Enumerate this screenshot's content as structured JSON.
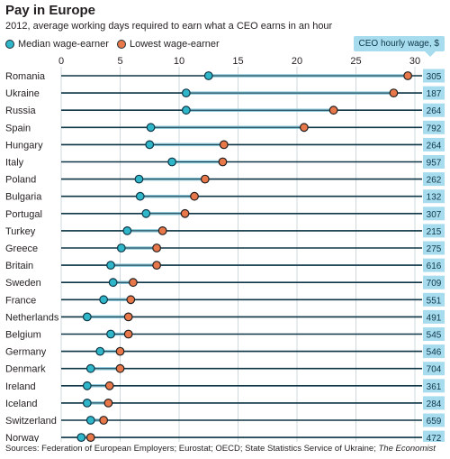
{
  "title": "Pay in Europe",
  "subtitle": "2012, average working days required to earn what a CEO earns in an hour",
  "legend": {
    "median": "Median wage-earner",
    "lowest": "Lowest wage-earner"
  },
  "ceo_header": "CEO hourly wage, $",
  "source": "Sources: Federation of European Employers; Eurostat; OECD; State Statistics Service of Ukraine; ",
  "source_italic": "The Economist",
  "colors": {
    "median": "#2fb6c9",
    "lowest": "#e8784a",
    "row_line": "#0e3747",
    "grid": "#cfd8dc",
    "ceo_box": "#a7dcef"
  },
  "chart_data": {
    "type": "scatter",
    "xlim": [
      0,
      30
    ],
    "xticks": [
      0,
      5,
      10,
      15,
      20,
      25,
      30
    ],
    "grid": true,
    "categories": [
      "Romania",
      "Ukraine",
      "Russia",
      "Spain",
      "Hungary",
      "Italy",
      "Poland",
      "Bulgaria",
      "Portugal",
      "Turkey",
      "Greece",
      "Britain",
      "Sweden",
      "France",
      "Netherlands",
      "Belgium",
      "Germany",
      "Denmark",
      "Ireland",
      "Iceland",
      "Switzerland",
      "Norway"
    ],
    "series": [
      {
        "name": "Median wage-earner",
        "values": [
          12.5,
          10.6,
          10.6,
          7.6,
          7.5,
          9.4,
          6.6,
          6.7,
          7.2,
          5.6,
          5.1,
          4.2,
          4.4,
          3.6,
          2.2,
          4.2,
          3.3,
          2.5,
          2.2,
          2.2,
          2.5,
          1.7
        ]
      },
      {
        "name": "Lowest wage-earner",
        "values": [
          29.4,
          28.2,
          23.1,
          20.6,
          13.8,
          13.7,
          12.2,
          11.3,
          10.5,
          8.6,
          8.1,
          8.1,
          6.1,
          5.9,
          5.7,
          5.7,
          5.0,
          5.0,
          4.1,
          4.0,
          3.6,
          2.5
        ]
      }
    ],
    "ceo_wage": [
      305,
      187,
      264,
      792,
      264,
      957,
      262,
      132,
      307,
      215,
      275,
      616,
      709,
      551,
      491,
      545,
      546,
      704,
      361,
      284,
      659,
      472
    ]
  }
}
